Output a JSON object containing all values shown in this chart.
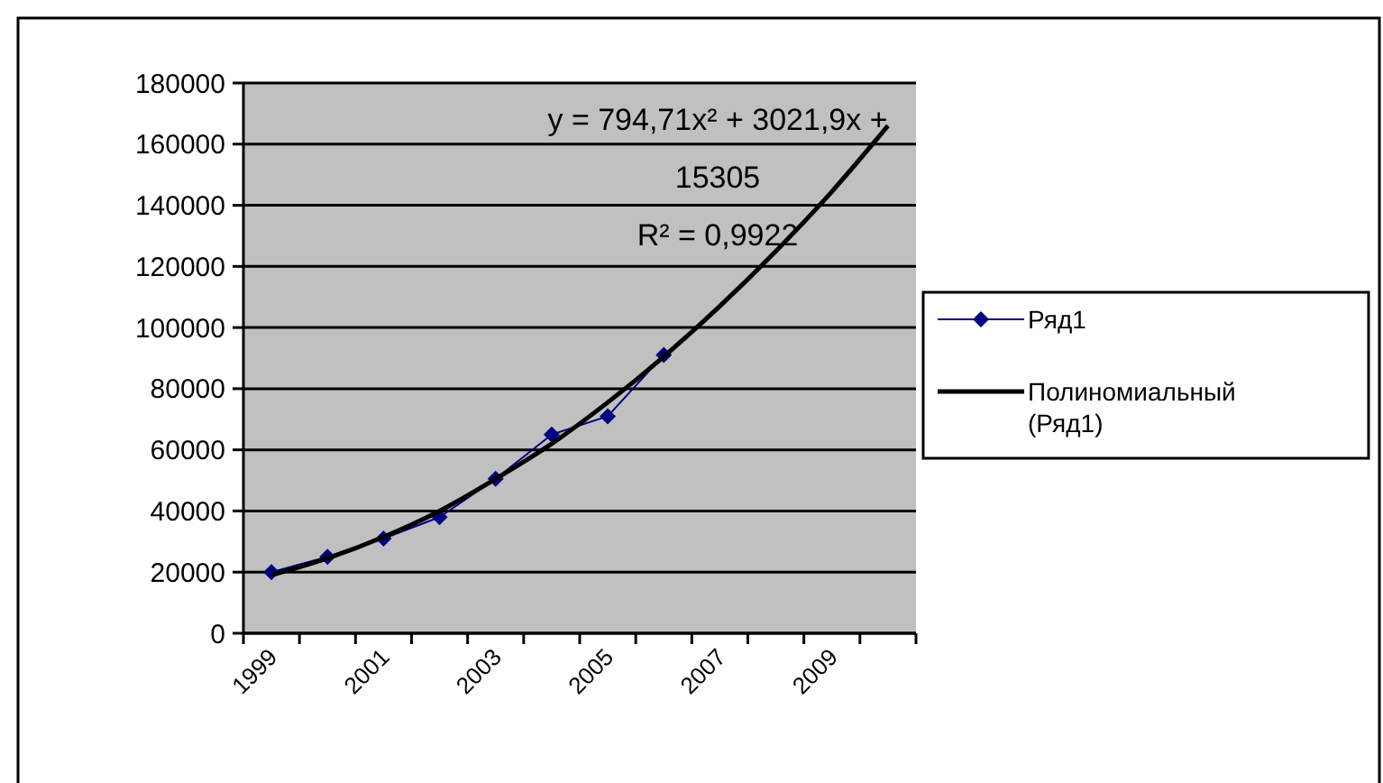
{
  "chart_data": {
    "type": "line",
    "categories": [
      "1999",
      null,
      "2001",
      null,
      "2003",
      null,
      "2005",
      null,
      "2007",
      null,
      "2009",
      null
    ],
    "series": [
      {
        "name": "Ряд1",
        "color": "#000080",
        "marker": "diamond",
        "values": [
          20000,
          25000,
          31000,
          38000,
          50500,
          65000,
          71000,
          91000,
          null,
          null,
          null,
          null
        ]
      },
      {
        "name": "Полиномиальный (Ряд1)",
        "color": "#000000",
        "marker": "none",
        "values": [
          19000,
          24500,
          31500,
          40000,
          50500,
          62000,
          75500,
          90500,
          107000,
          125000,
          144500,
          166000
        ]
      }
    ],
    "ylim": [
      0,
      180000
    ],
    "yticks": [
      0,
      20000,
      40000,
      60000,
      80000,
      100000,
      120000,
      140000,
      160000,
      180000
    ],
    "grid": "y",
    "legend": "right",
    "annotations": [
      "y = 794,71x² + 3021,9x + 15305",
      "R² = 0,9922"
    ]
  }
}
